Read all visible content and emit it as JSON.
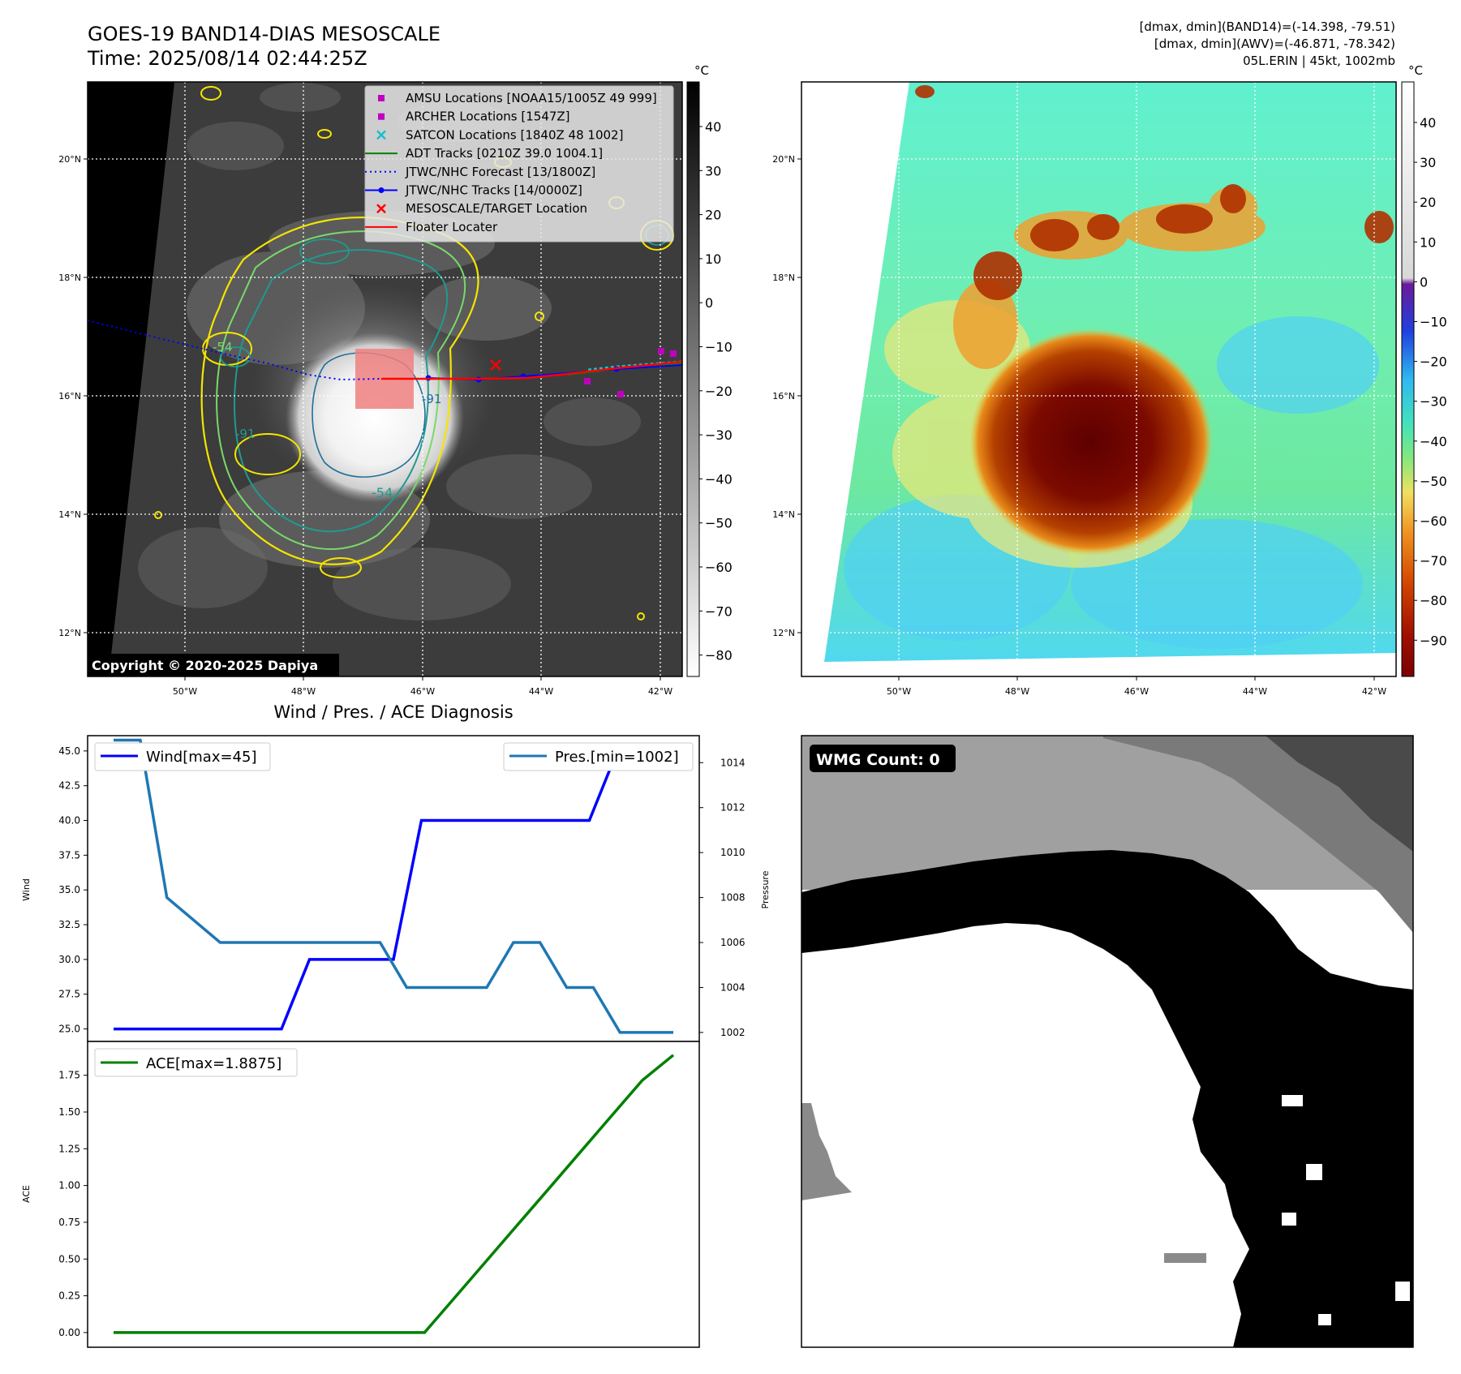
{
  "header": {
    "title_line1": "GOES-19 BAND14-DIAS MESOSCALE",
    "title_line2": "Time: 2025/08/14 02:44:25Z",
    "info_line1": "[dmax, dmin](BAND14)=(-14.398, -79.51)",
    "info_line2": "[dmax, dmin](AWV)=(-46.871, -78.342)",
    "info_line3": "05L.ERIN | 45kt, 1002mb"
  },
  "copyright": "Copyright © 2020-2025 Dapiya",
  "map_axes": {
    "lat_labels": [
      "20°N",
      "18°N",
      "16°N",
      "14°N",
      "12°N"
    ],
    "lon_labels": [
      "50°W",
      "48°W",
      "46°W",
      "44°W",
      "42°W"
    ]
  },
  "contour_labels": [
    "-54",
    "-91",
    "-91",
    "-54"
  ],
  "legend": [
    {
      "label": "AMSU Locations [NOAA15/1005Z 49 999]",
      "marker": "square",
      "color": "#c000c0"
    },
    {
      "label": "ARCHER Locations [1547Z]",
      "marker": "square",
      "color": "#c000c0"
    },
    {
      "label": "SATCON Locations [1840Z 48 1002]",
      "marker": "x",
      "color": "#17becf"
    },
    {
      "label": "ADT Tracks [0210Z 39.0 1004.1]",
      "marker": "line",
      "color": "#008000"
    },
    {
      "label": "JTWC/NHC Forecast [13/1800Z]",
      "marker": "dotted",
      "color": "#0000ff"
    },
    {
      "label": "JTWC/NHC Tracks [14/0000Z]",
      "marker": "line-dot",
      "color": "#0000ff"
    },
    {
      "label": "MESOSCALE/TARGET Location",
      "marker": "x",
      "color": "#ff0000"
    },
    {
      "label": "Floater Locater",
      "marker": "line",
      "color": "#ff0000"
    }
  ],
  "colorbar_gray": {
    "unit": "°C",
    "ticks": [
      "40",
      "30",
      "20",
      "10",
      "0",
      "−10",
      "−20",
      "−30",
      "−40",
      "−50",
      "−60",
      "−70",
      "−80"
    ]
  },
  "colorbar_color": {
    "unit": "°C",
    "ticks": [
      "40",
      "30",
      "20",
      "10",
      "0",
      "−10",
      "−20",
      "−30",
      "−40",
      "−50",
      "−60",
      "−70",
      "−80",
      "−90"
    ]
  },
  "wmg": {
    "label": "WMG Count: 0"
  },
  "colors": {
    "wind": "#0000ff",
    "pressure": "#1f77b4",
    "ace": "#008000",
    "floater": "#ff0000"
  },
  "chart_data": [
    {
      "type": "line",
      "title": "Wind / Pres. / ACE Diagnosis",
      "ylabel": "Wind",
      "y2label": "Pressure",
      "ylim": [
        24.1,
        46.1
      ],
      "y2lim": [
        1001.6,
        1015.2
      ],
      "yticks": [
        "45.0",
        "42.5",
        "40.0",
        "37.5",
        "35.0",
        "32.5",
        "30.0",
        "27.5",
        "25.0"
      ],
      "y2ticks": [
        "1014",
        "1012",
        "1010",
        "1008",
        "1006",
        "1004",
        "1002"
      ],
      "series": [
        {
          "name": "Wind[max=45]",
          "axis": "left",
          "values": [
            25,
            25,
            25,
            25,
            25,
            25,
            25,
            30,
            30,
            30,
            30,
            40,
            40,
            40,
            40,
            40,
            40,
            40,
            45,
            45,
            45
          ]
        },
        {
          "name": "Pres.[min=1002]",
          "axis": "right",
          "values": [
            1015,
            1015,
            1008,
            1007,
            1006,
            1006,
            1006,
            1006,
            1006,
            1006,
            1006,
            1004,
            1004,
            1004,
            1004,
            1006,
            1006,
            1004,
            1004,
            1002,
            1002,
            1002
          ]
        }
      ]
    },
    {
      "type": "line",
      "ylabel": "ACE",
      "ylim": [
        -0.1,
        1.98
      ],
      "yticks": [
        "1.75",
        "1.50",
        "1.25",
        "1.00",
        "0.75",
        "0.50",
        "0.25",
        "0.00"
      ],
      "series": [
        {
          "name": "ACE[max=1.8875]",
          "values": [
            0,
            0,
            0,
            0,
            0,
            0,
            0,
            0,
            0,
            0,
            0,
            0.245,
            0.49,
            0.735,
            0.98,
            1.225,
            1.47,
            1.715,
            1.8875
          ]
        }
      ]
    }
  ]
}
